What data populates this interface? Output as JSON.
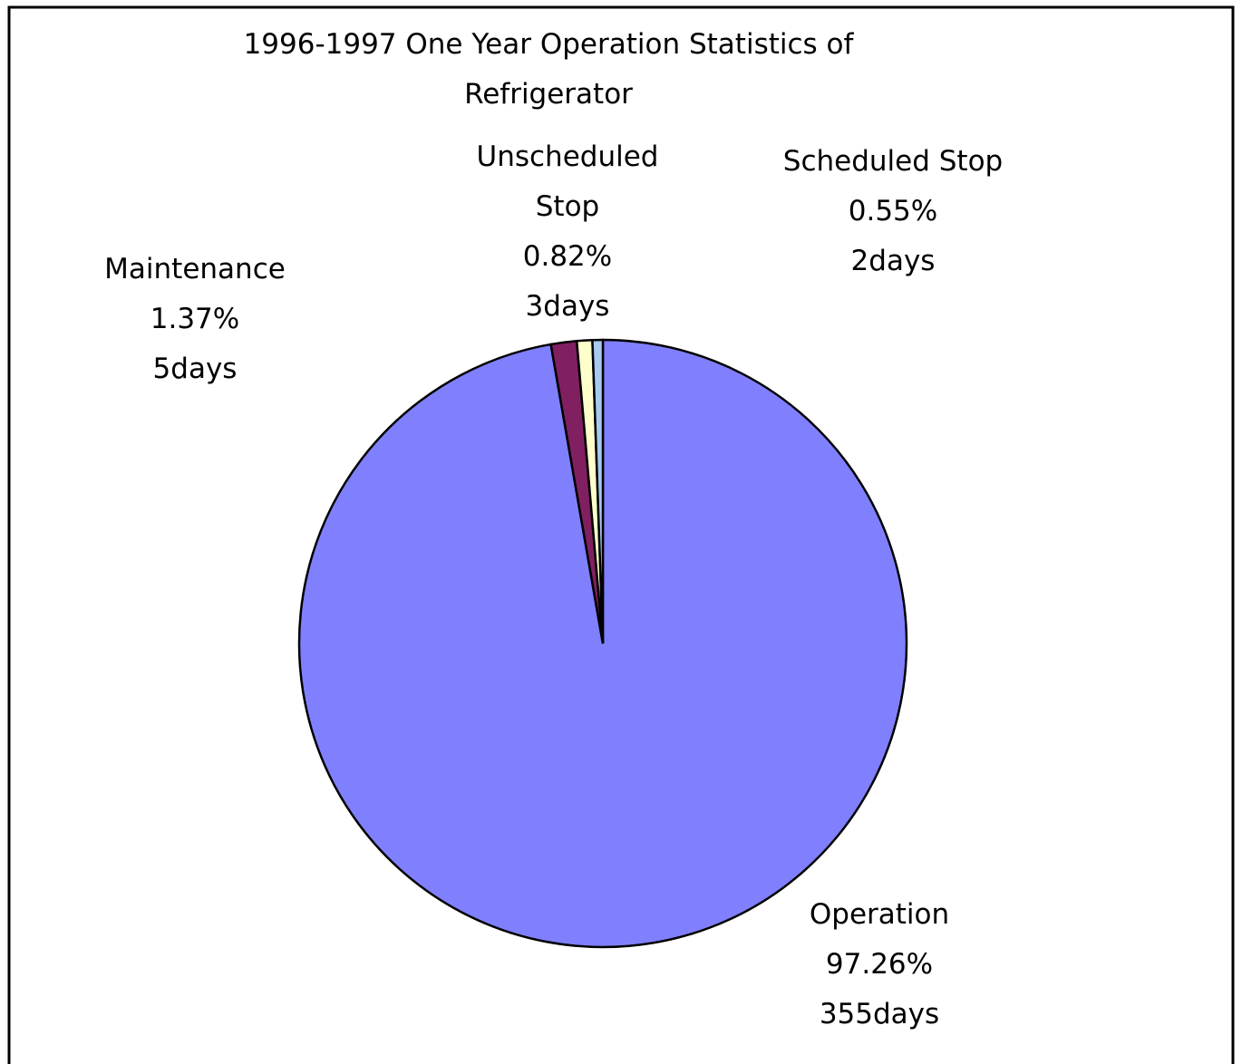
{
  "chart_data": {
    "type": "pie",
    "title": "1996-1997 One Year Operation Statistics of Refrigerator",
    "categories": [
      "Operation",
      "Maintenance",
      "Unscheduled Stop",
      "Scheduled Stop"
    ],
    "values": [
      97.26,
      1.37,
      0.82,
      0.55
    ],
    "value_labels": [
      "97.26%",
      "1.37%",
      "0.82%",
      "0.55%"
    ],
    "days_labels": [
      "355days",
      "5days",
      "3days",
      "2days"
    ],
    "colors": [
      "#8080ff",
      "#802060",
      "#ffffcc",
      "#a6caf0"
    ]
  }
}
